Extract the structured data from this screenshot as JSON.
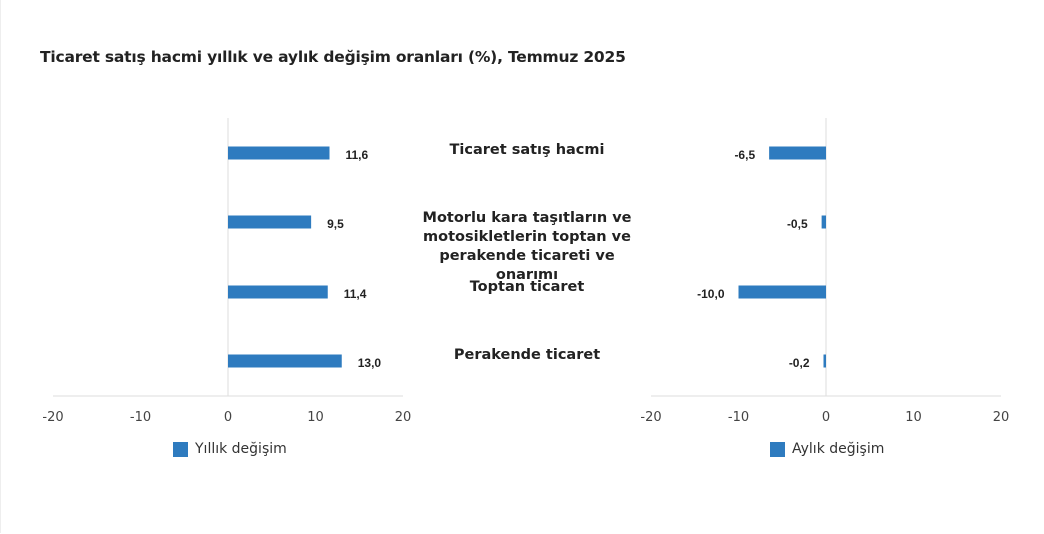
{
  "title": "Ticaret satış hacmi yıllık ve aylık değişim oranları (%), Temmuz 2025",
  "colors": {
    "bar": "#2e7bbf",
    "axis": "#dddddd"
  },
  "categories": [
    "Ticaret satış hacmi",
    "Motorlu kara taşıtların ve motosikletlerin toptan ve perakende ticareti ve onarımı",
    "Toptan ticaret",
    "Perakende ticaret"
  ],
  "chart_data": [
    {
      "type": "bar",
      "orientation": "horizontal",
      "categories": [
        "Ticaret satış hacmi",
        "Motorlu kara taşıtların ve motosikletlerin toptan ve perakende ticareti ve onarımı",
        "Toptan ticaret",
        "Perakende ticaret"
      ],
      "series": [
        {
          "name": "Yıllık değişim",
          "values": [
            11.6,
            9.5,
            11.4,
            13.0
          ]
        }
      ],
      "data_labels": [
        "11,6",
        "9,5",
        "11,4",
        "13,0"
      ],
      "xlim": [
        -20,
        20
      ],
      "xticks": [
        -20,
        -10,
        0,
        10,
        20
      ],
      "legend": "bottom",
      "grid": false
    },
    {
      "type": "bar",
      "orientation": "horizontal",
      "categories": [
        "Ticaret satış hacmi",
        "Motorlu kara taşıtların ve motosikletlerin toptan ve perakende ticareti ve onarımı",
        "Toptan ticaret",
        "Perakende ticaret"
      ],
      "series": [
        {
          "name": "Aylık değişim",
          "values": [
            -6.5,
            -0.5,
            -10.0,
            -0.2
          ]
        }
      ],
      "data_labels": [
        "-6,5",
        "-0,5",
        "-10,0",
        "-0,2"
      ],
      "xlim": [
        -20,
        20
      ],
      "xticks": [
        -20,
        -10,
        0,
        10,
        20
      ],
      "legend": "bottom",
      "grid": false
    }
  ]
}
